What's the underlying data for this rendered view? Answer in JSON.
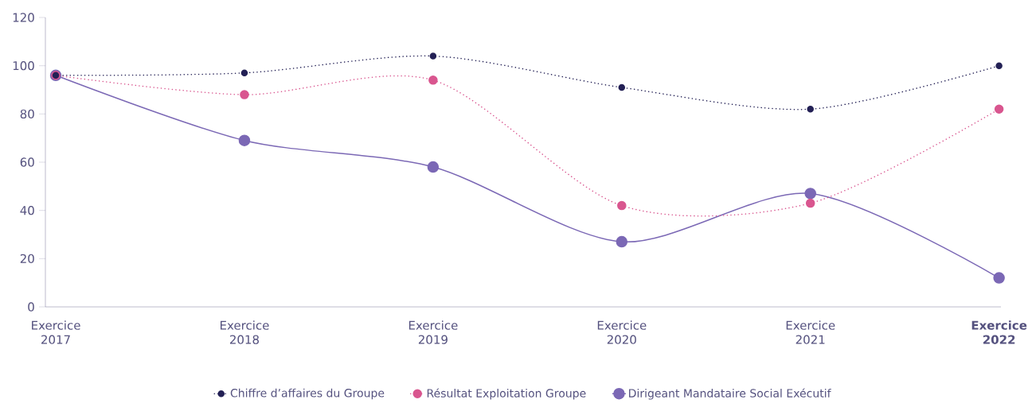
{
  "chart_data": {
    "type": "line",
    "categories": [
      "Exercice 2017",
      "Exercice 2018",
      "Exercice 2019",
      "Exercice 2020",
      "Exercice 2021",
      "**Exercice 2022**"
    ],
    "series": [
      {
        "name": "Chiffre d’affaires du Groupe",
        "color": "#232055",
        "line_style": "dotted",
        "values": [
          96,
          97,
          104,
          91,
          82,
          100
        ]
      },
      {
        "name": "Résultat Exploitation Groupe",
        "color": "#d9568f",
        "line_style": "dotted",
        "values": [
          96,
          88,
          94,
          42,
          43,
          82
        ]
      },
      {
        "name": "Dirigeant Mandataire Social Exécutif",
        "color": "#7b68b5",
        "line_style": "solid",
        "values": [
          96,
          69,
          58,
          27,
          47,
          12
        ]
      }
    ],
    "ylim": [
      0,
      120
    ],
    "yticks": [
      0,
      20,
      40,
      60,
      80,
      100,
      120
    ],
    "marker": "circle",
    "grid": false,
    "legend": "bottom"
  }
}
